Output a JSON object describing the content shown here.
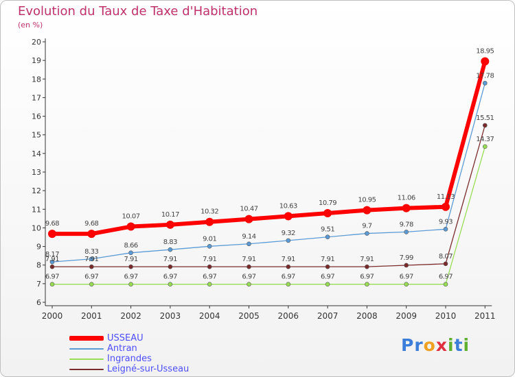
{
  "header": {
    "title": "Evolution du Taux de Taxe d'Habitation",
    "unit": "(en %)"
  },
  "chart_data": {
    "type": "line",
    "title": "Evolution du Taux de Taxe d'Habitation",
    "ylabel": "(en %)",
    "xlabel": "",
    "ylim": [
      6,
      20
    ],
    "yticks": [
      6,
      7,
      8,
      9,
      10,
      11,
      12,
      13,
      14,
      15,
      16,
      17,
      18,
      19,
      20
    ],
    "categories": [
      "2000",
      "2001",
      "2002",
      "2003",
      "2004",
      "2005",
      "2006",
      "2007",
      "2008",
      "2009",
      "2010",
      "2011"
    ],
    "grid": false,
    "legend_position": "bottom-left",
    "series": [
      {
        "name": "USSEAU",
        "color": "#ff0000",
        "values": [
          9.68,
          9.68,
          10.07,
          10.17,
          10.32,
          10.47,
          10.63,
          10.79,
          10.95,
          11.06,
          11.13,
          18.95
        ],
        "labels": [
          "9.68",
          "9.68",
          "10.07",
          "10.17",
          "10.32",
          "10.47",
          "10.63",
          "10.79",
          "10.95",
          "11.06",
          "11.13",
          "18.95"
        ]
      },
      {
        "name": "Antran",
        "color": "#5b9bd5",
        "values": [
          8.17,
          8.33,
          8.66,
          8.83,
          9.01,
          9.14,
          9.32,
          9.51,
          9.7,
          9.78,
          9.93,
          17.78
        ],
        "labels": [
          "8.17",
          "8.33",
          "8.66",
          "8.83",
          "9.01",
          "9.14",
          "9.32",
          "9.51",
          "9.7",
          "9.78",
          "9.93",
          "17.78"
        ]
      },
      {
        "name": "Ingrandes",
        "color": "#99dd55",
        "values": [
          6.97,
          6.97,
          6.97,
          6.97,
          6.97,
          6.97,
          6.97,
          6.97,
          6.97,
          6.97,
          6.97,
          14.37
        ],
        "labels": [
          "6.97",
          "6.97",
          "6.97",
          "6.97",
          "6.97",
          "6.97",
          "6.97",
          "6.97",
          "6.97",
          "6.97",
          "6.97",
          "14.37"
        ]
      },
      {
        "name": "Leigné-sur-Usseau",
        "color": "#7a2a2a",
        "values": [
          7.91,
          7.91,
          7.91,
          7.91,
          7.91,
          7.91,
          7.91,
          7.91,
          7.91,
          7.99,
          8.07,
          15.51
        ],
        "labels": [
          "7.91",
          "7.91",
          "7.91",
          "7.91",
          "7.91",
          "7.91",
          "7.91",
          "7.91",
          "7.91",
          "7.99",
          "8.07",
          "15.51"
        ]
      }
    ]
  },
  "legend": {
    "items": [
      {
        "label": "USSEAU",
        "color": "#ff0000"
      },
      {
        "label": "Antran",
        "color": "#5b9bd5"
      },
      {
        "label": "Ingrandes",
        "color": "#99dd55"
      },
      {
        "label": "Leigné-sur-Usseau",
        "color": "#7a2a2a"
      }
    ]
  },
  "brand": {
    "letters": [
      "P",
      "r",
      "o",
      "x",
      "i",
      "t",
      "i"
    ],
    "colors": [
      "#3b7dd8",
      "#3b7dd8",
      "#f0a020",
      "#e03040",
      "#60b030",
      "#3b7dd8",
      "#60b030"
    ]
  }
}
